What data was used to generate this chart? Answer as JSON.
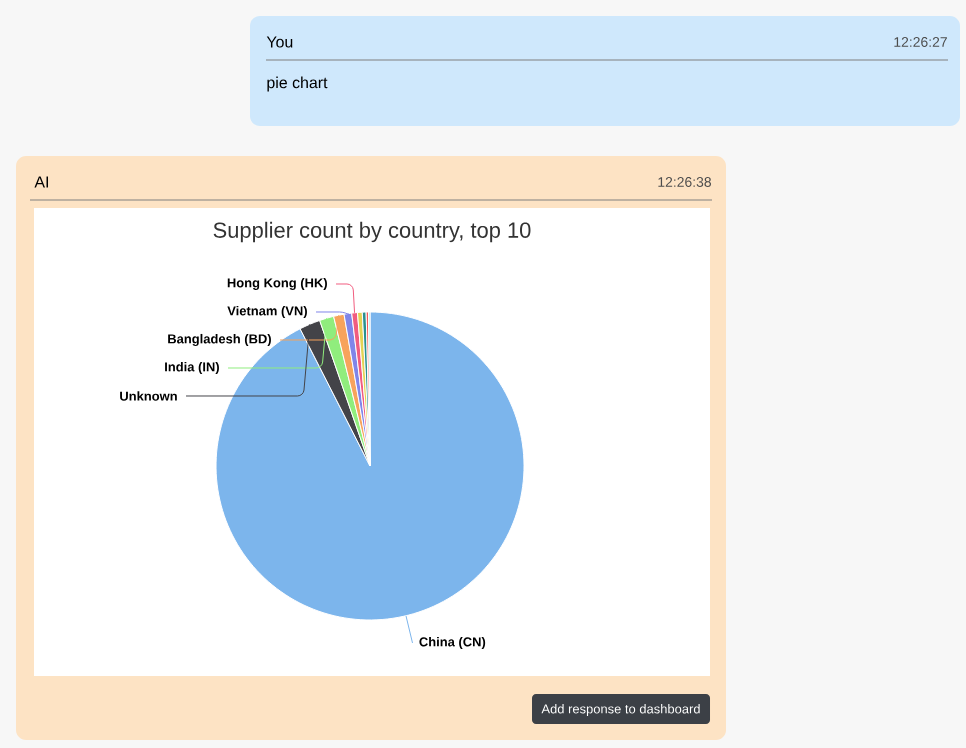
{
  "chart_data": {
    "type": "pie",
    "title": "Supplier count by country, top 10",
    "categories": [
      "China (CN)",
      "Unknown",
      "India (IN)",
      "Bangladesh (BD)",
      "Vietnam (VN)",
      "Hong Kong (HK)",
      null,
      null,
      null,
      null
    ],
    "values": [
      92.5,
      2.2,
      1.5,
      1.1,
      0.8,
      0.6,
      0.5,
      0.4,
      0.25,
      0.15
    ],
    "colors": [
      "#7cb5ec",
      "#434348",
      "#90ed7d",
      "#f7a35c",
      "#8085e9",
      "#f15c80",
      "#e4d354",
      "#2b908f",
      "#f45b5b",
      "#91e8e1"
    ],
    "annotations": [
      "You",
      "12:26:27",
      "pie chart",
      "AI",
      "12:26:38",
      "Add response to dashboard"
    ]
  }
}
